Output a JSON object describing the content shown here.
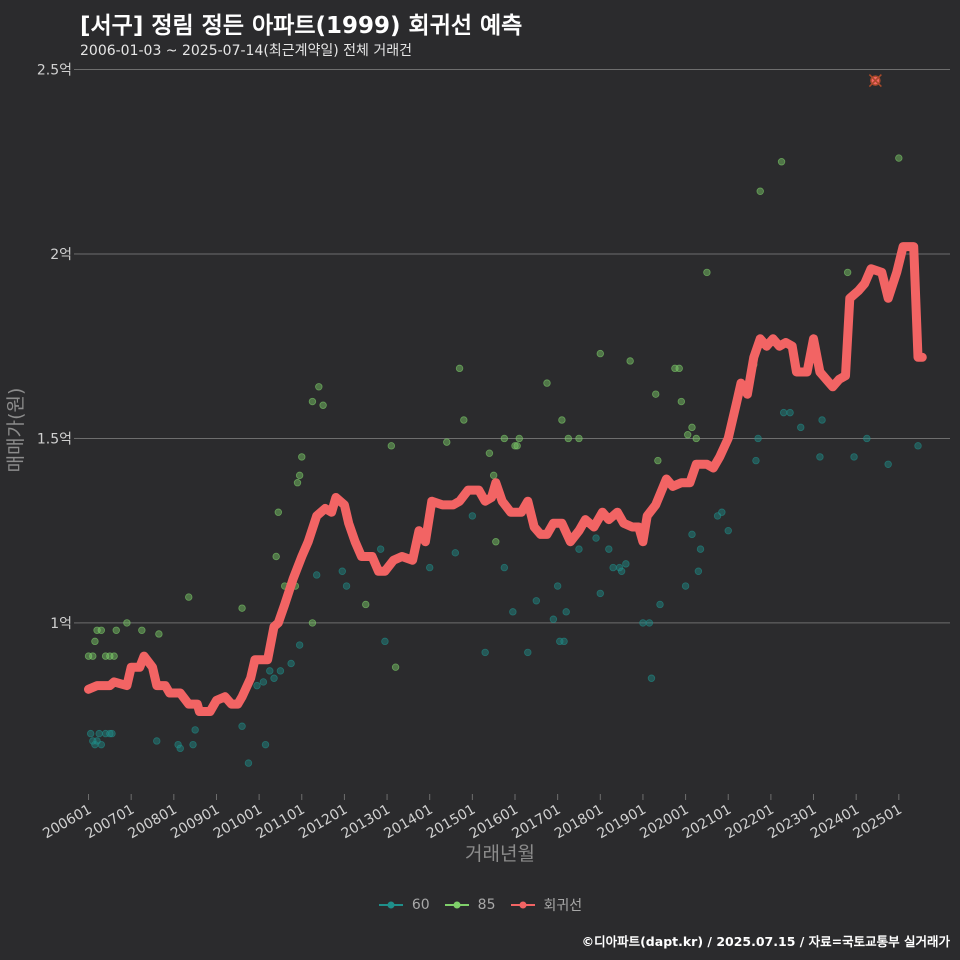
{
  "title": "[서구] 정림 정든 아파트(1999) 회귀선 예측",
  "subtitle": "2006-01-03 ~ 2025-07-14(최근계약일) 전체 거래건",
  "credit": "©디아파트(dapt.kr) / 2025.07.15 / 자료=국토교통부 실거래가",
  "colors": {
    "background": "#2b2b2d",
    "grid": "#6e6e6e",
    "series_60": "#1f8f8a",
    "series_85": "#7fd06a",
    "regression": "#f26464"
  },
  "chart_data": {
    "type": "scatter",
    "xlabel": "거래년월",
    "ylabel": "매매가(원)",
    "x_unit": "year-fraction",
    "xlim": [
      2005.8,
      2026.2
    ],
    "ylim": [
      0.52,
      2.58
    ],
    "y_ticks": [
      {
        "value": 1.0,
        "label": "1억"
      },
      {
        "value": 1.5,
        "label": "1.5억"
      },
      {
        "value": 2.0,
        "label": "2억"
      },
      {
        "value": 2.5,
        "label": "2.5억"
      }
    ],
    "x_ticks": [
      {
        "value": 2006.0,
        "label": "200601"
      },
      {
        "value": 2007.0,
        "label": "200701"
      },
      {
        "value": 2008.0,
        "label": "200801"
      },
      {
        "value": 2009.0,
        "label": "200901"
      },
      {
        "value": 2010.0,
        "label": "201001"
      },
      {
        "value": 2011.0,
        "label": "201101"
      },
      {
        "value": 2012.0,
        "label": "201201"
      },
      {
        "value": 2013.0,
        "label": "201301"
      },
      {
        "value": 2014.0,
        "label": "201401"
      },
      {
        "value": 2015.0,
        "label": "201501"
      },
      {
        "value": 2016.0,
        "label": "201601"
      },
      {
        "value": 2017.0,
        "label": "201701"
      },
      {
        "value": 2018.0,
        "label": "201801"
      },
      {
        "value": 2019.0,
        "label": "201901"
      },
      {
        "value": 2020.0,
        "label": "202001"
      },
      {
        "value": 2021.0,
        "label": "202101"
      },
      {
        "value": 2022.0,
        "label": "202201"
      },
      {
        "value": 2023.0,
        "label": "202301"
      },
      {
        "value": 2024.0,
        "label": "202401"
      },
      {
        "value": 2025.0,
        "label": "202501"
      }
    ],
    "grid": true,
    "legend_position": "bottom",
    "series": [
      {
        "name": "60",
        "color": "#1f8f8a",
        "points": [
          [
            2006.05,
            0.7
          ],
          [
            2006.1,
            0.68
          ],
          [
            2006.15,
            0.67
          ],
          [
            2006.2,
            0.68
          ],
          [
            2006.25,
            0.7
          ],
          [
            2006.3,
            0.67
          ],
          [
            2006.4,
            0.7
          ],
          [
            2006.5,
            0.7
          ],
          [
            2006.55,
            0.7
          ],
          [
            2007.6,
            0.68
          ],
          [
            2008.1,
            0.67
          ],
          [
            2008.15,
            0.66
          ],
          [
            2008.45,
            0.67
          ],
          [
            2008.5,
            0.71
          ],
          [
            2009.6,
            0.72
          ],
          [
            2009.75,
            0.62
          ],
          [
            2009.95,
            0.83
          ],
          [
            2010.1,
            0.84
          ],
          [
            2010.15,
            0.67
          ],
          [
            2010.25,
            0.87
          ],
          [
            2010.35,
            0.85
          ],
          [
            2010.5,
            0.87
          ],
          [
            2010.75,
            0.89
          ],
          [
            2010.95,
            0.94
          ],
          [
            2011.35,
            1.13
          ],
          [
            2011.95,
            1.14
          ],
          [
            2012.05,
            1.1
          ],
          [
            2012.85,
            1.2
          ],
          [
            2012.95,
            0.95
          ],
          [
            2014.0,
            1.15
          ],
          [
            2014.6,
            1.19
          ],
          [
            2015.0,
            1.29
          ],
          [
            2015.3,
            0.92
          ],
          [
            2015.75,
            1.15
          ],
          [
            2015.95,
            1.03
          ],
          [
            2016.3,
            0.92
          ],
          [
            2016.5,
            1.06
          ],
          [
            2016.9,
            1.01
          ],
          [
            2017.0,
            1.1
          ],
          [
            2017.05,
            0.95
          ],
          [
            2017.15,
            0.95
          ],
          [
            2017.2,
            1.03
          ],
          [
            2017.5,
            1.2
          ],
          [
            2017.9,
            1.23
          ],
          [
            2018.0,
            1.08
          ],
          [
            2018.2,
            1.2
          ],
          [
            2018.3,
            1.15
          ],
          [
            2018.45,
            1.15
          ],
          [
            2018.5,
            1.14
          ],
          [
            2018.6,
            1.16
          ],
          [
            2019.0,
            1.0
          ],
          [
            2019.15,
            1.0
          ],
          [
            2019.2,
            0.85
          ],
          [
            2019.4,
            1.05
          ],
          [
            2020.0,
            1.1
          ],
          [
            2020.15,
            1.24
          ],
          [
            2020.3,
            1.14
          ],
          [
            2020.35,
            1.2
          ],
          [
            2020.75,
            1.29
          ],
          [
            2020.85,
            1.3
          ],
          [
            2021.0,
            1.25
          ],
          [
            2021.65,
            1.44
          ],
          [
            2021.7,
            1.5
          ],
          [
            2022.3,
            1.57
          ],
          [
            2022.45,
            1.57
          ],
          [
            2022.7,
            1.53
          ],
          [
            2023.15,
            1.45
          ],
          [
            2023.2,
            1.55
          ],
          [
            2023.95,
            1.45
          ],
          [
            2024.25,
            1.5
          ],
          [
            2024.75,
            1.43
          ],
          [
            2025.45,
            1.48
          ]
        ]
      },
      {
        "name": "85",
        "color": "#7fd06a",
        "points": [
          [
            2006.0,
            0.91
          ],
          [
            2006.1,
            0.91
          ],
          [
            2006.15,
            0.95
          ],
          [
            2006.2,
            0.98
          ],
          [
            2006.3,
            0.98
          ],
          [
            2006.4,
            0.91
          ],
          [
            2006.5,
            0.91
          ],
          [
            2006.6,
            0.91
          ],
          [
            2006.65,
            0.98
          ],
          [
            2006.9,
            1.0
          ],
          [
            2007.25,
            0.98
          ],
          [
            2007.65,
            0.97
          ],
          [
            2008.35,
            1.07
          ],
          [
            2009.6,
            1.04
          ],
          [
            2010.4,
            1.18
          ],
          [
            2010.45,
            1.3
          ],
          [
            2010.6,
            1.1
          ],
          [
            2010.85,
            1.1
          ],
          [
            2010.9,
            1.38
          ],
          [
            2010.95,
            1.4
          ],
          [
            2011.0,
            1.45
          ],
          [
            2011.25,
            1.0
          ],
          [
            2011.25,
            1.6
          ],
          [
            2011.4,
            1.64
          ],
          [
            2011.5,
            1.59
          ],
          [
            2012.5,
            1.05
          ],
          [
            2013.1,
            1.48
          ],
          [
            2013.2,
            0.88
          ],
          [
            2014.4,
            1.49
          ],
          [
            2014.7,
            1.69
          ],
          [
            2014.8,
            1.55
          ],
          [
            2015.4,
            1.46
          ],
          [
            2015.5,
            1.4
          ],
          [
            2015.55,
            1.22
          ],
          [
            2015.75,
            1.5
          ],
          [
            2016.0,
            1.48
          ],
          [
            2016.05,
            1.48
          ],
          [
            2016.1,
            1.5
          ],
          [
            2016.75,
            1.65
          ],
          [
            2017.1,
            1.55
          ],
          [
            2017.25,
            1.5
          ],
          [
            2017.5,
            1.5
          ],
          [
            2018.0,
            1.73
          ],
          [
            2018.7,
            1.71
          ],
          [
            2019.3,
            1.62
          ],
          [
            2019.35,
            1.44
          ],
          [
            2019.75,
            1.69
          ],
          [
            2019.85,
            1.69
          ],
          [
            2019.9,
            1.6
          ],
          [
            2020.05,
            1.51
          ],
          [
            2020.15,
            1.53
          ],
          [
            2020.25,
            1.5
          ],
          [
            2020.5,
            1.95
          ],
          [
            2021.6,
            1.7
          ],
          [
            2021.75,
            2.17
          ],
          [
            2022.25,
            2.25
          ],
          [
            2023.8,
            1.95
          ],
          [
            2025.0,
            2.26
          ]
        ]
      },
      {
        "name": "회귀선",
        "color": "#f26464",
        "points": [
          [
            2006.0,
            0.82
          ],
          [
            2006.2,
            0.83
          ],
          [
            2006.5,
            0.83
          ],
          [
            2006.6,
            0.84
          ],
          [
            2006.9,
            0.83
          ],
          [
            2007.0,
            0.88
          ],
          [
            2007.2,
            0.88
          ],
          [
            2007.3,
            0.91
          ],
          [
            2007.5,
            0.88
          ],
          [
            2007.6,
            0.83
          ],
          [
            2007.8,
            0.83
          ],
          [
            2007.9,
            0.81
          ],
          [
            2008.15,
            0.81
          ],
          [
            2008.35,
            0.78
          ],
          [
            2008.55,
            0.78
          ],
          [
            2008.6,
            0.76
          ],
          [
            2008.85,
            0.76
          ],
          [
            2009.0,
            0.79
          ],
          [
            2009.2,
            0.8
          ],
          [
            2009.35,
            0.78
          ],
          [
            2009.5,
            0.78
          ],
          [
            2009.6,
            0.8
          ],
          [
            2009.8,
            0.85
          ],
          [
            2009.9,
            0.9
          ],
          [
            2010.2,
            0.9
          ],
          [
            2010.35,
            0.99
          ],
          [
            2010.45,
            1.0
          ],
          [
            2010.6,
            1.05
          ],
          [
            2010.8,
            1.12
          ],
          [
            2011.0,
            1.18
          ],
          [
            2011.15,
            1.22
          ],
          [
            2011.35,
            1.29
          ],
          [
            2011.55,
            1.31
          ],
          [
            2011.7,
            1.3
          ],
          [
            2011.8,
            1.34
          ],
          [
            2012.0,
            1.32
          ],
          [
            2012.1,
            1.27
          ],
          [
            2012.25,
            1.22
          ],
          [
            2012.4,
            1.18
          ],
          [
            2012.65,
            1.18
          ],
          [
            2012.8,
            1.14
          ],
          [
            2012.95,
            1.14
          ],
          [
            2013.15,
            1.17
          ],
          [
            2013.35,
            1.18
          ],
          [
            2013.6,
            1.17
          ],
          [
            2013.75,
            1.25
          ],
          [
            2013.9,
            1.22
          ],
          [
            2014.05,
            1.33
          ],
          [
            2014.3,
            1.32
          ],
          [
            2014.55,
            1.32
          ],
          [
            2014.7,
            1.33
          ],
          [
            2014.9,
            1.36
          ],
          [
            2015.15,
            1.36
          ],
          [
            2015.3,
            1.33
          ],
          [
            2015.45,
            1.34
          ],
          [
            2015.55,
            1.38
          ],
          [
            2015.7,
            1.33
          ],
          [
            2015.9,
            1.3
          ],
          [
            2016.15,
            1.3
          ],
          [
            2016.3,
            1.33
          ],
          [
            2016.45,
            1.26
          ],
          [
            2016.6,
            1.24
          ],
          [
            2016.75,
            1.24
          ],
          [
            2016.9,
            1.27
          ],
          [
            2017.1,
            1.27
          ],
          [
            2017.3,
            1.22
          ],
          [
            2017.5,
            1.25
          ],
          [
            2017.65,
            1.28
          ],
          [
            2017.85,
            1.26
          ],
          [
            2018.05,
            1.3
          ],
          [
            2018.2,
            1.28
          ],
          [
            2018.4,
            1.3
          ],
          [
            2018.55,
            1.27
          ],
          [
            2018.75,
            1.26
          ],
          [
            2018.9,
            1.26
          ],
          [
            2019.0,
            1.22
          ],
          [
            2019.1,
            1.29
          ],
          [
            2019.3,
            1.32
          ],
          [
            2019.55,
            1.39
          ],
          [
            2019.7,
            1.37
          ],
          [
            2019.9,
            1.38
          ],
          [
            2020.1,
            1.38
          ],
          [
            2020.25,
            1.43
          ],
          [
            2020.5,
            1.43
          ],
          [
            2020.65,
            1.42
          ],
          [
            2020.8,
            1.45
          ],
          [
            2021.0,
            1.5
          ],
          [
            2021.2,
            1.6
          ],
          [
            2021.3,
            1.65
          ],
          [
            2021.45,
            1.62
          ],
          [
            2021.6,
            1.72
          ],
          [
            2021.75,
            1.77
          ],
          [
            2021.9,
            1.75
          ],
          [
            2022.05,
            1.77
          ],
          [
            2022.2,
            1.75
          ],
          [
            2022.35,
            1.76
          ],
          [
            2022.5,
            1.75
          ],
          [
            2022.6,
            1.68
          ],
          [
            2022.85,
            1.68
          ],
          [
            2023.0,
            1.77
          ],
          [
            2023.15,
            1.68
          ],
          [
            2023.3,
            1.66
          ],
          [
            2023.45,
            1.64
          ],
          [
            2023.6,
            1.66
          ],
          [
            2023.75,
            1.67
          ],
          [
            2023.85,
            1.88
          ],
          [
            2024.05,
            1.9
          ],
          [
            2024.2,
            1.92
          ],
          [
            2024.35,
            1.96
          ],
          [
            2024.6,
            1.95
          ],
          [
            2024.75,
            1.88
          ],
          [
            2024.95,
            1.95
          ],
          [
            2025.1,
            2.02
          ],
          [
            2025.35,
            2.02
          ],
          [
            2025.45,
            1.72
          ],
          [
            2025.55,
            1.72
          ]
        ]
      }
    ],
    "highlight": {
      "x": 2024.45,
      "y": 2.47
    }
  }
}
